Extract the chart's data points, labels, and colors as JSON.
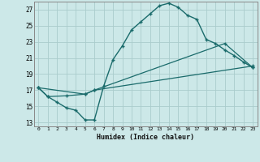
{
  "xlabel": "Humidex (Indice chaleur)",
  "ylabel": "",
  "bg_color": "#cce8e8",
  "grid_color": "#aacccc",
  "line_color": "#1a6b6b",
  "xlim": [
    -0.5,
    23.5
  ],
  "ylim": [
    12.5,
    28.0
  ],
  "yticks": [
    13,
    15,
    17,
    19,
    21,
    23,
    25,
    27
  ],
  "xticks": [
    0,
    1,
    2,
    3,
    4,
    5,
    6,
    7,
    8,
    9,
    10,
    11,
    12,
    13,
    14,
    15,
    16,
    17,
    18,
    19,
    20,
    21,
    22,
    23
  ],
  "line1_x": [
    0,
    1,
    2,
    3,
    4,
    5,
    6,
    7,
    8,
    9,
    10,
    11,
    12,
    13,
    14,
    15,
    16,
    17,
    18,
    19,
    20,
    21,
    22,
    23
  ],
  "line1_y": [
    17.3,
    16.2,
    15.5,
    14.8,
    14.5,
    13.3,
    13.3,
    17.5,
    20.8,
    22.5,
    24.5,
    25.5,
    26.5,
    27.5,
    27.8,
    27.3,
    26.3,
    25.8,
    23.3,
    22.8,
    22.0,
    21.3,
    20.5,
    19.8
  ],
  "line2_x": [
    0,
    1,
    3,
    5,
    6,
    23
  ],
  "line2_y": [
    17.3,
    16.2,
    16.3,
    16.5,
    17.0,
    20.0
  ],
  "line3_x": [
    0,
    5,
    6,
    20,
    23
  ],
  "line3_y": [
    17.3,
    16.5,
    17.0,
    22.8,
    19.8
  ]
}
